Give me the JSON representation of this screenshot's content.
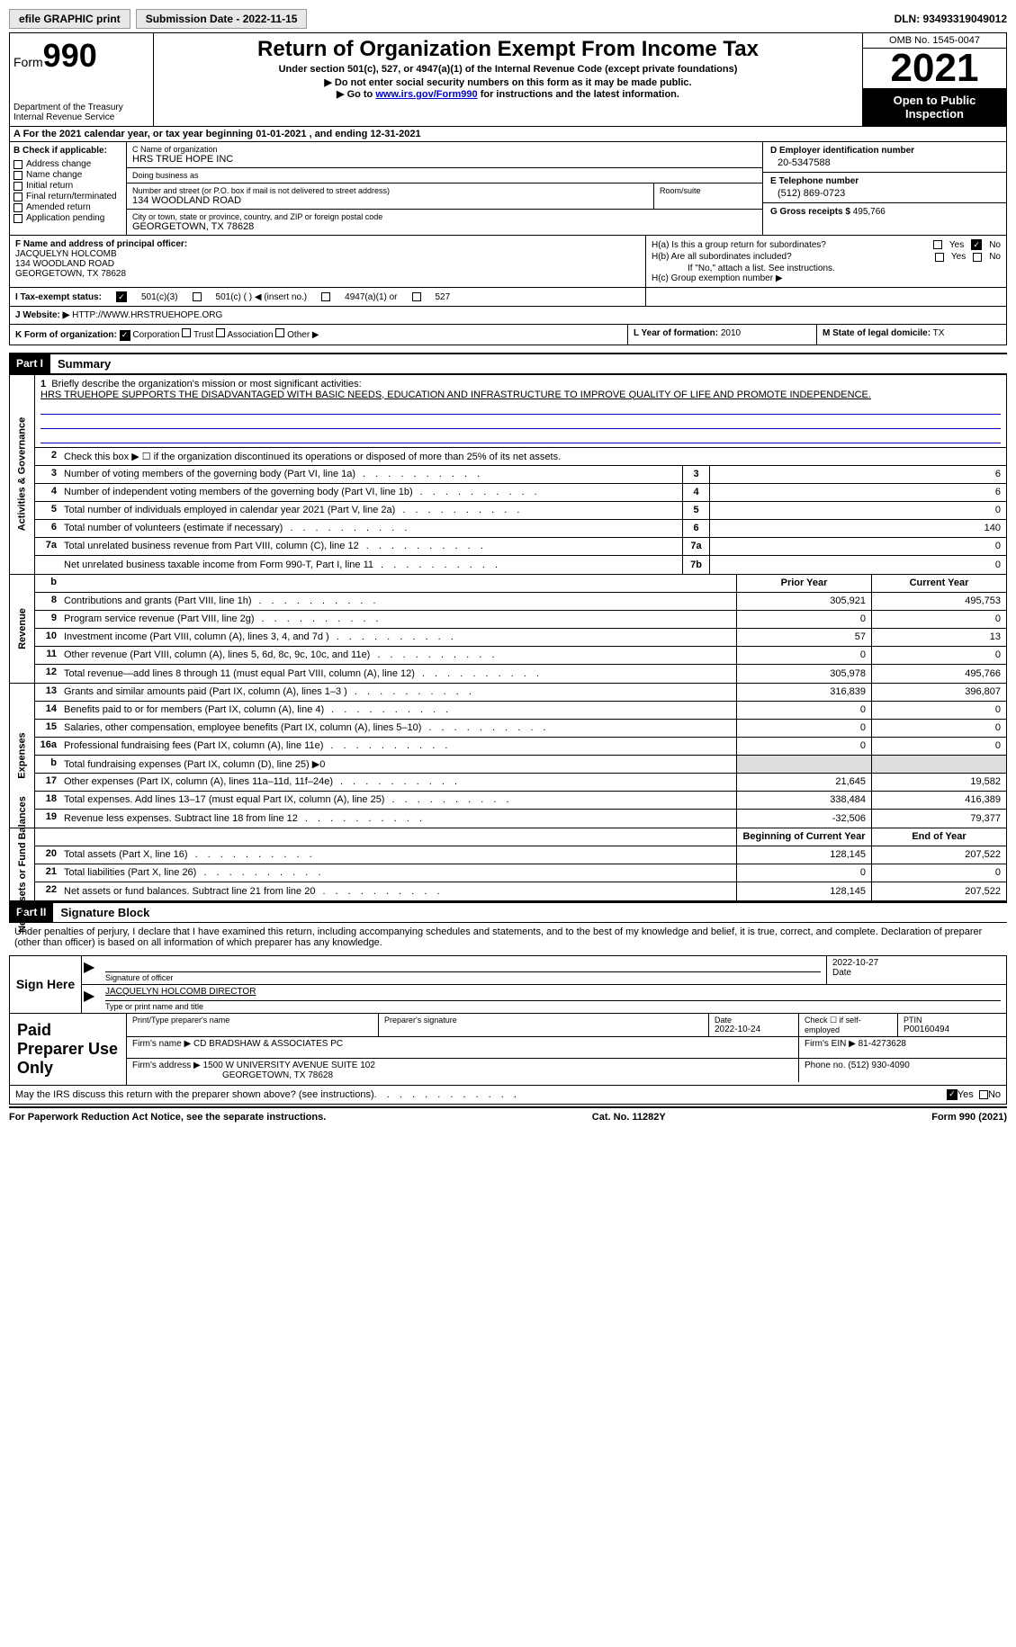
{
  "topbar": {
    "efile_btn": "efile GRAPHIC print",
    "sub_date_label": "Submission Date - 2022-11-15",
    "dln": "DLN: 93493319049012"
  },
  "header": {
    "form_label": "Form",
    "form_num": "990",
    "dept": "Department of the Treasury",
    "irs": "Internal Revenue Service",
    "title": "Return of Organization Exempt From Income Tax",
    "sub1": "Under section 501(c), 527, or 4947(a)(1) of the Internal Revenue Code (except private foundations)",
    "sub2a": "▶ Do not enter social security numbers on this form as it may be made public.",
    "sub2b": "▶ Go to ",
    "sub2b_link": "www.irs.gov/Form990",
    "sub2b_after": " for instructions and the latest information.",
    "omb": "OMB No. 1545-0047",
    "year": "2021",
    "open": "Open to Public Inspection"
  },
  "row_a": "A For the 2021 calendar year, or tax year beginning 01-01-2021    , and ending 12-31-2021",
  "col_b": {
    "title": "B Check if applicable:",
    "opts": [
      "Address change",
      "Name change",
      "Initial return",
      "Final return/terminated",
      "Amended return",
      "Application pending"
    ]
  },
  "col_c": {
    "name_lbl": "C Name of organization",
    "name": "HRS TRUE HOPE INC",
    "dba_lbl": "Doing business as",
    "dba": "",
    "addr_lbl": "Number and street (or P.O. box if mail is not delivered to street address)",
    "addr": "134 WOODLAND ROAD",
    "room_lbl": "Room/suite",
    "city_lbl": "City or town, state or province, country, and ZIP or foreign postal code",
    "city": "GEORGETOWN, TX  78628"
  },
  "col_d": {
    "ein_lbl": "D Employer identification number",
    "ein": "20-5347588",
    "phone_lbl": "E Telephone number",
    "phone": "(512) 869-0723",
    "gross_lbl": "G Gross receipts $",
    "gross": "495,766"
  },
  "col_f": {
    "lbl": "F Name and address of principal officer:",
    "name": "JACQUELYN HOLCOMB",
    "addr1": "134 WOODLAND ROAD",
    "addr2": "GEORGETOWN, TX  78628"
  },
  "col_h": {
    "ha": "H(a)  Is this a group return for subordinates?",
    "hb": "H(b)  Are all subordinates included?",
    "hb_note": "If \"No,\" attach a list. See instructions.",
    "hc": "H(c)  Group exemption number ▶",
    "yes": "Yes",
    "no": "No"
  },
  "row_i": {
    "lbl": "I   Tax-exempt status:",
    "opt1": "501(c)(3)",
    "opt2": "501(c) (  ) ◀ (insert no.)",
    "opt3": "4947(a)(1) or",
    "opt4": "527"
  },
  "row_j": {
    "lbl": "J   Website: ▶",
    "val": "HTTP://WWW.HRSTRUEHOPE.ORG"
  },
  "row_k": {
    "lbl": "K Form of organization:",
    "opts": [
      "Corporation",
      "Trust",
      "Association",
      "Other ▶"
    ]
  },
  "row_l": {
    "lbl": "L Year of formation:",
    "val": "2010"
  },
  "row_m": {
    "lbl": "M State of legal domicile:",
    "val": "TX"
  },
  "part1": {
    "hdr": "Part I",
    "title": "Summary"
  },
  "mission": {
    "num": "1",
    "lbl": "Briefly describe the organization's mission or most significant activities:",
    "text": "HRS TRUEHOPE SUPPORTS THE DISADVANTAGED WITH BASIC NEEDS, EDUCATION AND INFRASTRUCTURE TO IMPROVE QUALITY OF LIFE AND PROMOTE INDEPENDENCE."
  },
  "line2": {
    "num": "2",
    "text": "Check this box ▶ ☐ if the organization discontinued its operations or disposed of more than 25% of its net assets."
  },
  "sections": {
    "gov": "Activities & Governance",
    "rev": "Revenue",
    "exp": "Expenses",
    "net": "Net Assets or Fund Balances"
  },
  "lines": [
    {
      "n": "3",
      "d": "Number of voting members of the governing body (Part VI, line 1a)",
      "box": "3",
      "v": "6"
    },
    {
      "n": "4",
      "d": "Number of independent voting members of the governing body (Part VI, line 1b)",
      "box": "4",
      "v": "6"
    },
    {
      "n": "5",
      "d": "Total number of individuals employed in calendar year 2021 (Part V, line 2a)",
      "box": "5",
      "v": "0"
    },
    {
      "n": "6",
      "d": "Total number of volunteers (estimate if necessary)",
      "box": "6",
      "v": "140"
    },
    {
      "n": "7a",
      "d": "Total unrelated business revenue from Part VIII, column (C), line 12",
      "box": "7a",
      "v": "0"
    },
    {
      "n": "",
      "d": "Net unrelated business taxable income from Form 990-T, Part I, line 11",
      "box": "7b",
      "v": "0"
    }
  ],
  "col_hdrs": {
    "prior": "Prior Year",
    "current": "Current Year"
  },
  "rev_lines": [
    {
      "n": "8",
      "d": "Contributions and grants (Part VIII, line 1h)",
      "p": "305,921",
      "c": "495,753"
    },
    {
      "n": "9",
      "d": "Program service revenue (Part VIII, line 2g)",
      "p": "0",
      "c": "0"
    },
    {
      "n": "10",
      "d": "Investment income (Part VIII, column (A), lines 3, 4, and 7d )",
      "p": "57",
      "c": "13"
    },
    {
      "n": "11",
      "d": "Other revenue (Part VIII, column (A), lines 5, 6d, 8c, 9c, 10c, and 11e)",
      "p": "0",
      "c": "0"
    },
    {
      "n": "12",
      "d": "Total revenue—add lines 8 through 11 (must equal Part VIII, column (A), line 12)",
      "p": "305,978",
      "c": "495,766"
    }
  ],
  "exp_lines": [
    {
      "n": "13",
      "d": "Grants and similar amounts paid (Part IX, column (A), lines 1–3 )",
      "p": "316,839",
      "c": "396,807"
    },
    {
      "n": "14",
      "d": "Benefits paid to or for members (Part IX, column (A), line 4)",
      "p": "0",
      "c": "0"
    },
    {
      "n": "15",
      "d": "Salaries, other compensation, employee benefits (Part IX, column (A), lines 5–10)",
      "p": "0",
      "c": "0"
    },
    {
      "n": "16a",
      "d": "Professional fundraising fees (Part IX, column (A), line 11e)",
      "p": "0",
      "c": "0"
    },
    {
      "n": "b",
      "d": "Total fundraising expenses (Part IX, column (D), line 25) ▶0",
      "p": "",
      "c": "",
      "shaded": true
    },
    {
      "n": "17",
      "d": "Other expenses (Part IX, column (A), lines 11a–11d, 11f–24e)",
      "p": "21,645",
      "c": "19,582"
    },
    {
      "n": "18",
      "d": "Total expenses. Add lines 13–17 (must equal Part IX, column (A), line 25)",
      "p": "338,484",
      "c": "416,389"
    },
    {
      "n": "19",
      "d": "Revenue less expenses. Subtract line 18 from line 12",
      "p": "-32,506",
      "c": "79,377"
    }
  ],
  "net_hdrs": {
    "begin": "Beginning of Current Year",
    "end": "End of Year"
  },
  "net_lines": [
    {
      "n": "20",
      "d": "Total assets (Part X, line 16)",
      "p": "128,145",
      "c": "207,522"
    },
    {
      "n": "21",
      "d": "Total liabilities (Part X, line 26)",
      "p": "0",
      "c": "0"
    },
    {
      "n": "22",
      "d": "Net assets or fund balances. Subtract line 21 from line 20",
      "p": "128,145",
      "c": "207,522"
    }
  ],
  "part2": {
    "hdr": "Part II",
    "title": "Signature Block"
  },
  "sig_decl": "Under penalties of perjury, I declare that I have examined this return, including accompanying schedules and statements, and to the best of my knowledge and belief, it is true, correct, and complete. Declaration of preparer (other than officer) is based on all information of which preparer has any knowledge.",
  "sign_here": "Sign Here",
  "sig": {
    "sig_lbl": "Signature of officer",
    "date_val": "2022-10-27",
    "date_lbl": "Date",
    "name": "JACQUELYN HOLCOMB  DIRECTOR",
    "name_lbl": "Type or print name and title"
  },
  "prep": {
    "title": "Paid Preparer Use Only",
    "r1": {
      "c1_lbl": "Print/Type preparer's name",
      "c2_lbl": "Preparer's signature",
      "c3_lbl": "Date",
      "c3_val": "2022-10-24",
      "c4_lbl": "Check ☐ if self-employed",
      "c5_lbl": "PTIN",
      "c5_val": "P00160494"
    },
    "r2": {
      "lbl": "Firm's name    ▶",
      "val": "CD BRADSHAW & ASSOCIATES PC",
      "ein_lbl": "Firm's EIN ▶",
      "ein": "81-4273628"
    },
    "r3": {
      "lbl": "Firm's address ▶",
      "val1": "1500 W UNIVERSITY AVENUE SUITE 102",
      "val2": "GEORGETOWN, TX  78628",
      "ph_lbl": "Phone no.",
      "ph": "(512) 930-4090"
    }
  },
  "discuss": "May the IRS discuss this return with the preparer shown above? (see instructions)",
  "footer": {
    "left": "For Paperwork Reduction Act Notice, see the separate instructions.",
    "mid": "Cat. No. 11282Y",
    "right": "Form 990 (2021)"
  }
}
